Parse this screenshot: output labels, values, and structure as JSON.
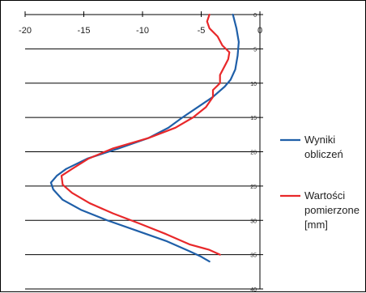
{
  "chart_data": {
    "type": "line",
    "title": "",
    "xlabel": "",
    "ylabel": "",
    "xlim": [
      -20,
      0
    ],
    "ylim": [
      0,
      40
    ],
    "y_inverted": true,
    "x_axis_position": "top",
    "y_axis_position": "right",
    "grid": "horizontal",
    "legend_position": "right",
    "x_ticks": [
      "-20",
      "-15",
      "-10",
      "-5",
      "0"
    ],
    "y_ticks": [
      "0",
      "5",
      "10",
      "15",
      "20",
      "25",
      "30",
      "35",
      "40"
    ],
    "series": [
      {
        "name": "Wyniki obliczeń",
        "color": "#1F5FA8",
        "points": [
          [
            -2.3,
            0
          ],
          [
            -2.0,
            2
          ],
          [
            -1.8,
            4
          ],
          [
            -1.9,
            6
          ],
          [
            -2.1,
            8
          ],
          [
            -2.5,
            9.5
          ],
          [
            -3.0,
            10.5
          ],
          [
            -4.0,
            12
          ],
          [
            -5.3,
            13.5
          ],
          [
            -6.6,
            15
          ],
          [
            -7.8,
            16.5
          ],
          [
            -9.5,
            18
          ],
          [
            -12.0,
            19.5
          ],
          [
            -14.7,
            21
          ],
          [
            -16.5,
            22.5
          ],
          [
            -17.3,
            23.5
          ],
          [
            -17.8,
            24.5
          ],
          [
            -17.6,
            25.5
          ],
          [
            -16.8,
            27
          ],
          [
            -15.2,
            28.5
          ],
          [
            -13.0,
            30
          ],
          [
            -10.5,
            31.5
          ],
          [
            -8.0,
            33
          ],
          [
            -6.0,
            34.5
          ],
          [
            -5.0,
            35.3
          ],
          [
            -4.3,
            36
          ]
        ]
      },
      {
        "name": "Wartości pomierzone [mm]",
        "color": "#E8282A",
        "points": [
          [
            -4.3,
            0
          ],
          [
            -4.5,
            1
          ],
          [
            -4.3,
            2
          ],
          [
            -3.6,
            3.2
          ],
          [
            -3.2,
            4.5
          ],
          [
            -2.6,
            5.5
          ],
          [
            -2.7,
            6.5
          ],
          [
            -3.0,
            7.5
          ],
          [
            -3.4,
            8.8
          ],
          [
            -3.4,
            10
          ],
          [
            -4.0,
            11
          ],
          [
            -4.0,
            12
          ],
          [
            -4.6,
            13.5
          ],
          [
            -5.7,
            15
          ],
          [
            -7.2,
            16.5
          ],
          [
            -9.5,
            18
          ],
          [
            -12.5,
            19.5
          ],
          [
            -14.6,
            21
          ],
          [
            -16.0,
            22.5
          ],
          [
            -16.9,
            23.5
          ],
          [
            -16.8,
            24.8
          ],
          [
            -16.0,
            26
          ],
          [
            -14.5,
            27.5
          ],
          [
            -12.5,
            29
          ],
          [
            -10.2,
            30.5
          ],
          [
            -8.0,
            32
          ],
          [
            -6.0,
            33.5
          ],
          [
            -4.3,
            34.3
          ],
          [
            -3.4,
            35
          ]
        ]
      }
    ]
  },
  "legend": {
    "entries": [
      {
        "lines": [
          "Wyniki",
          "obliczeń"
        ],
        "color": "#1F5FA8"
      },
      {
        "lines": [
          "Wartości",
          "pomierzone",
          "[mm]"
        ],
        "color": "#E8282A"
      }
    ]
  }
}
